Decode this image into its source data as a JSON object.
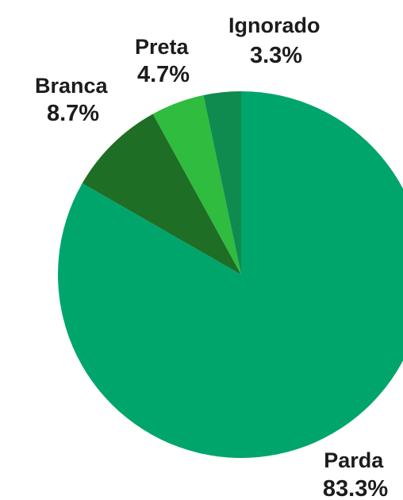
{
  "chart_data": {
    "type": "pie",
    "title": "",
    "start_angle_deg": 0,
    "direction": "clockwise",
    "slices": [
      {
        "label": "Parda",
        "value": 83.3,
        "value_label": "83.3%",
        "color": "#00a56c"
      },
      {
        "label": "Branca",
        "value": 8.7,
        "value_label": "8.7%",
        "color": "#1e6e26"
      },
      {
        "label": "Preta",
        "value": 4.7,
        "value_label": "4.7%",
        "color": "#2fbc3f"
      },
      {
        "label": "Ignorado",
        "value": 3.3,
        "value_label": "3.3%",
        "color": "#108b50"
      }
    ]
  }
}
